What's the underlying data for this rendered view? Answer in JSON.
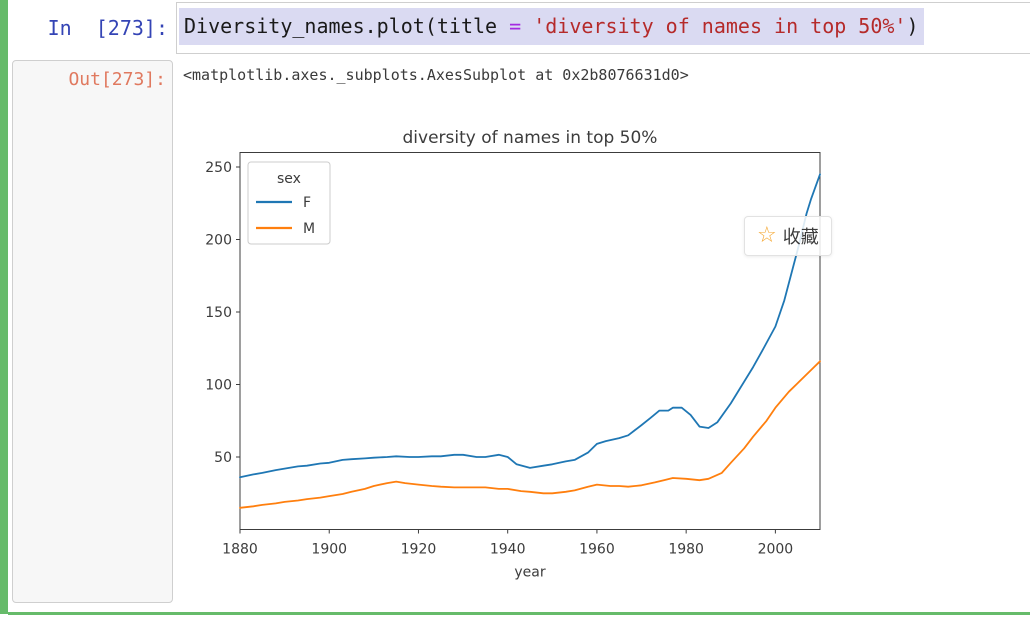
{
  "cell": {
    "input_prompt": "In  [273]:",
    "output_prompt": "Out[273]:",
    "code_segments": [
      {
        "text": "Diversity_names.plot(title ",
        "cls": "tok-plain"
      },
      {
        "text": "=",
        "cls": "tok-op"
      },
      {
        "text": " ",
        "cls": "tok-plain"
      },
      {
        "text": "'diversity of names in top 50%'",
        "cls": "tok-str"
      },
      {
        "text": ")",
        "cls": "tok-plain"
      }
    ],
    "output_repr": "<matplotlib.axes._subplots.AxesSubplot at 0x2b8076631d0>"
  },
  "overlay_button": {
    "icon": "☆",
    "label": "收藏"
  },
  "colors": {
    "cell_border_green": "#66bb6a",
    "in_prompt_blue": "#3444b5",
    "out_prompt_salmon": "#e0795f",
    "selection_lavender": "#dadaf2",
    "code_string_red": "#b52a2a",
    "code_operator_purple": "#a42ae0",
    "series_f_blue": "#1f77b4",
    "series_m_orange": "#ff7f0e",
    "star_orange": "#f5a833"
  },
  "chart_data": {
    "type": "line",
    "title": "diversity of names in top 50%",
    "xlabel": "year",
    "ylabel": "",
    "legend_title": "sex",
    "legend_position": "upper-left",
    "grid": false,
    "xlim": [
      1880,
      2010
    ],
    "ylim": [
      0,
      260
    ],
    "xticks": [
      1880,
      1900,
      1920,
      1940,
      1960,
      1980,
      2000
    ],
    "yticks": [
      50,
      100,
      150,
      200,
      250
    ],
    "series": [
      {
        "name": "F",
        "color": "#1f77b4",
        "points": [
          [
            1880,
            36
          ],
          [
            1883,
            38
          ],
          [
            1885,
            39
          ],
          [
            1888,
            41
          ],
          [
            1890,
            42
          ],
          [
            1893,
            43.5
          ],
          [
            1895,
            44
          ],
          [
            1898,
            45.5
          ],
          [
            1900,
            46
          ],
          [
            1903,
            48
          ],
          [
            1905,
            48.5
          ],
          [
            1908,
            49
          ],
          [
            1910,
            49.5
          ],
          [
            1913,
            50
          ],
          [
            1915,
            50.5
          ],
          [
            1918,
            50
          ],
          [
            1920,
            50
          ],
          [
            1923,
            50.5
          ],
          [
            1925,
            50.5
          ],
          [
            1928,
            51.5
          ],
          [
            1930,
            51.5
          ],
          [
            1933,
            50
          ],
          [
            1935,
            50
          ],
          [
            1938,
            51.5
          ],
          [
            1940,
            50
          ],
          [
            1942,
            45
          ],
          [
            1945,
            42.5
          ],
          [
            1948,
            44
          ],
          [
            1950,
            45
          ],
          [
            1953,
            47
          ],
          [
            1955,
            48
          ],
          [
            1958,
            53
          ],
          [
            1960,
            59
          ],
          [
            1962,
            61
          ],
          [
            1965,
            63
          ],
          [
            1967,
            65
          ],
          [
            1970,
            72
          ],
          [
            1972,
            77
          ],
          [
            1974,
            82
          ],
          [
            1976,
            82
          ],
          [
            1977,
            84
          ],
          [
            1979,
            84
          ],
          [
            1981,
            79
          ],
          [
            1983,
            71
          ],
          [
            1985,
            70
          ],
          [
            1987,
            74
          ],
          [
            1990,
            87
          ],
          [
            1992,
            97
          ],
          [
            1995,
            112
          ],
          [
            1997,
            123
          ],
          [
            2000,
            140
          ],
          [
            2002,
            158
          ],
          [
            2005,
            193
          ],
          [
            2007,
            218
          ],
          [
            2008,
            228
          ],
          [
            2010,
            245
          ]
        ]
      },
      {
        "name": "M",
        "color": "#ff7f0e",
        "points": [
          [
            1880,
            15
          ],
          [
            1883,
            16
          ],
          [
            1885,
            17
          ],
          [
            1888,
            18
          ],
          [
            1890,
            19
          ],
          [
            1893,
            20
          ],
          [
            1895,
            21
          ],
          [
            1898,
            22
          ],
          [
            1900,
            23
          ],
          [
            1903,
            24.5
          ],
          [
            1905,
            26
          ],
          [
            1908,
            28
          ],
          [
            1910,
            30
          ],
          [
            1913,
            32
          ],
          [
            1915,
            33
          ],
          [
            1917,
            32
          ],
          [
            1920,
            31
          ],
          [
            1923,
            30
          ],
          [
            1925,
            29.5
          ],
          [
            1928,
            29
          ],
          [
            1930,
            29
          ],
          [
            1933,
            29
          ],
          [
            1935,
            29
          ],
          [
            1938,
            28
          ],
          [
            1940,
            28
          ],
          [
            1943,
            26.5
          ],
          [
            1945,
            26
          ],
          [
            1948,
            25
          ],
          [
            1950,
            25
          ],
          [
            1953,
            26
          ],
          [
            1955,
            27
          ],
          [
            1958,
            29.5
          ],
          [
            1960,
            31
          ],
          [
            1963,
            30
          ],
          [
            1965,
            30
          ],
          [
            1967,
            29.5
          ],
          [
            1970,
            30.5
          ],
          [
            1973,
            32.5
          ],
          [
            1975,
            34
          ],
          [
            1977,
            35.5
          ],
          [
            1980,
            35
          ],
          [
            1983,
            34
          ],
          [
            1985,
            35
          ],
          [
            1988,
            39
          ],
          [
            1990,
            46
          ],
          [
            1993,
            56
          ],
          [
            1995,
            64
          ],
          [
            1998,
            75
          ],
          [
            2000,
            84
          ],
          [
            2003,
            95
          ],
          [
            2005,
            101
          ],
          [
            2008,
            110
          ],
          [
            2010,
            116
          ]
        ]
      }
    ]
  }
}
